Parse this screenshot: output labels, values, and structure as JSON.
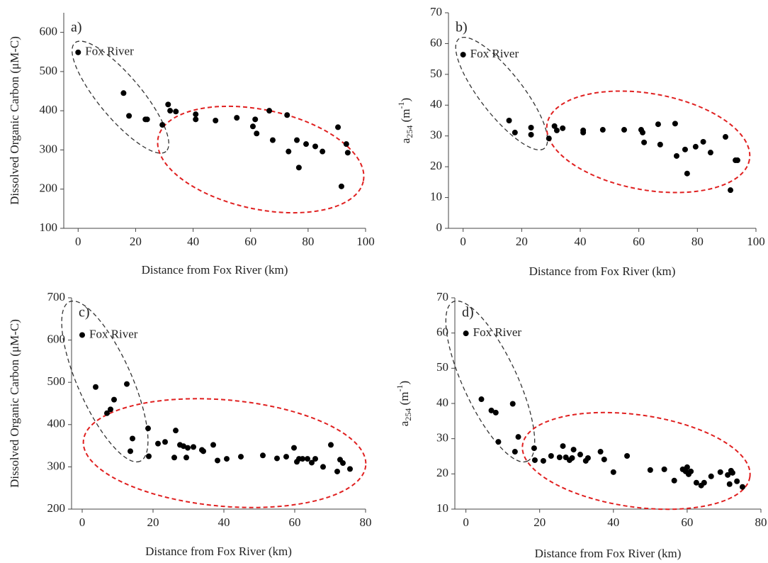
{
  "chart_data": [
    {
      "type": "scatter",
      "panel_label": "a)",
      "annotation": "Fox River",
      "x_label": "Distance from Fox River (km)",
      "y_label": "Dissolved Organic Carbon (μM-C)",
      "color": "#000000",
      "xlim": [
        -5,
        100
      ],
      "ylim": [
        100,
        650
      ],
      "xticks": [
        0,
        20,
        40,
        60,
        80,
        100
      ],
      "yticks": [
        100,
        200,
        300,
        400,
        500,
        600
      ],
      "x": [
        0,
        15.8,
        17.7,
        23.4,
        24,
        29.3,
        31.3,
        32,
        34,
        40.9,
        40.9,
        47.8,
        55.2,
        60.8,
        61.6,
        62.1,
        66.5,
        67.7,
        72.7,
        73.2,
        76.1,
        76.8,
        79.3,
        82.5,
        85,
        90.4,
        91.6,
        93.3,
        93.8
      ],
      "values": [
        549,
        445,
        387,
        378,
        378,
        364,
        416,
        400,
        398,
        391,
        378,
        375,
        382,
        360,
        378,
        342,
        400,
        325,
        389,
        296,
        325,
        255,
        315,
        309,
        296,
        358,
        207,
        315,
        293
      ]
    },
    {
      "type": "scatter",
      "panel_label": "b)",
      "annotation": "Fox River",
      "x_label": "Distance from Fox River (km)",
      "y_label": [
        "a",
        "254",
        " (m",
        "-1",
        ")"
      ],
      "color": "#000000",
      "xlim": [
        -5,
        100
      ],
      "ylim": [
        0,
        70
      ],
      "xticks": [
        0,
        20,
        40,
        60,
        80,
        100
      ],
      "yticks": [
        0,
        10,
        20,
        30,
        40,
        50,
        60,
        70
      ],
      "x": [
        0,
        15.7,
        17.7,
        23.2,
        23.2,
        29.3,
        31.2,
        32,
        34,
        41,
        41,
        47.7,
        55,
        60.8,
        61.3,
        61.8,
        66.6,
        67.3,
        72.4,
        72.9,
        75.8,
        76.5,
        79.4,
        82,
        84.5,
        89.6,
        91.3,
        93,
        93.7
      ],
      "values": [
        56.4,
        35,
        31.1,
        32.7,
        30.4,
        29.2,
        33.2,
        31.8,
        32.5,
        31.8,
        31.1,
        32,
        32,
        32,
        31.1,
        27.9,
        33.8,
        27.2,
        34,
        23.5,
        25.6,
        17.8,
        26.5,
        28.1,
        24.6,
        29.7,
        12.4,
        22.1,
        22.1
      ]
    },
    {
      "type": "scatter",
      "panel_label": "c)",
      "annotation": "Fox River",
      "x_label": "Distance from Fox River (km)",
      "y_label": "Dissolved Organic Carbon (μM-C)",
      "color": "#000000",
      "xlim": [
        -3,
        80
      ],
      "ylim": [
        200,
        700
      ],
      "xticks": [
        0,
        20,
        40,
        60,
        80
      ],
      "yticks": [
        200,
        300,
        400,
        500,
        600,
        700
      ],
      "x": [
        0,
        3.8,
        7,
        8,
        9,
        12.6,
        13.6,
        14.2,
        18.6,
        18.8,
        21.4,
        23.4,
        26,
        26.4,
        27.6,
        28.6,
        29.4,
        29.8,
        31.4,
        33.8,
        34.2,
        37,
        38.2,
        40.8,
        44.8,
        51,
        55,
        57.6,
        59.8,
        60.6,
        61.2,
        62.2,
        63.6,
        64.8,
        65.8,
        68,
        70.2,
        72,
        72.8,
        73.6,
        75.6
      ],
      "values": [
        612,
        489,
        427,
        436,
        459,
        496,
        337,
        367,
        391,
        325,
        355,
        359,
        322,
        386,
        352,
        349,
        322,
        345,
        347,
        340,
        337,
        352,
        315,
        319,
        324,
        327,
        320,
        324,
        345,
        312,
        319,
        319,
        319,
        310,
        319,
        300,
        352,
        289,
        317,
        309,
        295
      ]
    },
    {
      "type": "scatter",
      "panel_label": "d)",
      "annotation": "Fox River",
      "x_label": "Distance from Fox River (km)",
      "y_label": [
        "a",
        "254",
        " (m",
        "-1",
        ")"
      ],
      "color": "#000000",
      "xlim": [
        -3,
        80
      ],
      "ylim": [
        10,
        70
      ],
      "xticks": [
        0,
        20,
        40,
        60,
        80
      ],
      "yticks": [
        10,
        20,
        30,
        40,
        50,
        60,
        70
      ],
      "x": [
        0,
        4.2,
        6.9,
        8.1,
        8.8,
        12.7,
        13.3,
        14.2,
        18.5,
        18.7,
        21,
        23.1,
        25.4,
        26.3,
        27.1,
        28.1,
        28.8,
        29.2,
        31,
        32.5,
        33.1,
        36.5,
        37.5,
        40,
        43.7,
        50,
        53.8,
        56.5,
        58.8,
        59.6,
        60,
        60.4,
        61,
        62.5,
        63.8,
        64.6,
        66.5,
        69,
        71,
        71.5,
        71.9,
        72.3,
        73.5,
        75
      ],
      "values": [
        59.9,
        41.2,
        38,
        37.4,
        29.1,
        39.9,
        26.3,
        30.5,
        27.3,
        23.9,
        23.7,
        25.1,
        24.7,
        27.9,
        24.7,
        23.9,
        24.5,
        26.9,
        25.5,
        23.7,
        24.5,
        26.3,
        24.1,
        20.5,
        25.1,
        21.1,
        21.3,
        18.1,
        21.3,
        20.7,
        21.9,
        19.9,
        20.7,
        17.5,
        16.7,
        17.5,
        19.3,
        20.5,
        19.7,
        17.1,
        20.9,
        20.3,
        17.9,
        16.3
      ]
    }
  ]
}
